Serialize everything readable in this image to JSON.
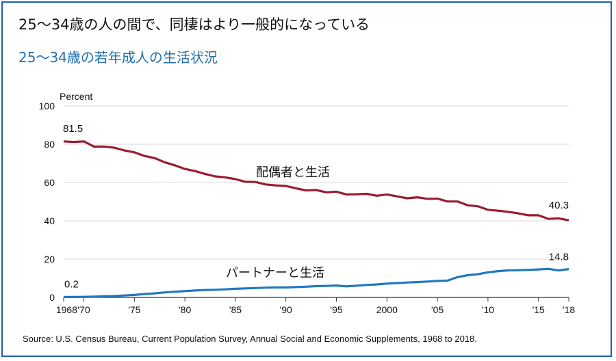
{
  "title": "25～34歳の人の間で、同棲はより一般的になっている",
  "subtitle": "25～34歳の若年成人の生活状況",
  "source": "Source: U.S. Census Bureau, Current Population Survey, Annual Social and Economic Supplements, 1968 to 2018.",
  "colors": {
    "spouse": "#9b1b30",
    "partner": "#1f78c1",
    "frame": "#1f5fa8",
    "subtitle": "#1f6fb0",
    "grid": "#cccccc"
  },
  "chart_data": {
    "type": "line",
    "ylabel": "Percent",
    "ylim": [
      0,
      100
    ],
    "yticks": [
      "0",
      "20",
      "40",
      "60",
      "80",
      "100"
    ],
    "xlim": [
      1968,
      2018
    ],
    "xticks": [
      {
        "x": 1968,
        "label": "1968"
      },
      {
        "x": 1970,
        "label": "'70"
      },
      {
        "x": 1975,
        "label": "'75"
      },
      {
        "x": 1980,
        "label": "'80"
      },
      {
        "x": 1985,
        "label": "'85"
      },
      {
        "x": 1990,
        "label": "'90"
      },
      {
        "x": 1995,
        "label": "'95"
      },
      {
        "x": 2000,
        "label": "2000"
      },
      {
        "x": 2005,
        "label": "'05"
      },
      {
        "x": 2010,
        "label": "'10"
      },
      {
        "x": 2015,
        "label": "'15"
      },
      {
        "x": 2018,
        "label": "'18"
      }
    ],
    "x": [
      1968,
      1969,
      1970,
      1971,
      1972,
      1973,
      1974,
      1975,
      1976,
      1977,
      1978,
      1979,
      1980,
      1981,
      1982,
      1983,
      1984,
      1985,
      1986,
      1987,
      1988,
      1989,
      1990,
      1991,
      1992,
      1993,
      1994,
      1995,
      1996,
      1997,
      1998,
      1999,
      2000,
      2001,
      2002,
      2003,
      2004,
      2005,
      2006,
      2007,
      2008,
      2009,
      2010,
      2011,
      2012,
      2013,
      2014,
      2015,
      2016,
      2017,
      2018
    ],
    "series": [
      {
        "name": "配偶者と生活",
        "values": [
          81.5,
          81.2,
          81.5,
          78.8,
          78.8,
          78.2,
          76.8,
          75.8,
          73.9,
          72.8,
          70.6,
          69.0,
          67.1,
          66.0,
          64.5,
          63.2,
          62.7,
          61.8,
          60.4,
          60.3,
          59.0,
          58.5,
          58.2,
          57.0,
          55.9,
          56.1,
          54.9,
          55.2,
          53.8,
          53.9,
          54.1,
          53.1,
          53.8,
          52.8,
          51.8,
          52.3,
          51.5,
          51.6,
          50.1,
          50.1,
          48.1,
          47.6,
          45.8,
          45.3,
          44.7,
          43.9,
          42.9,
          42.9,
          41.0,
          41.3,
          40.3
        ],
        "end_labels": {
          "first": "81.5",
          "last": "40.3"
        }
      },
      {
        "name": "パートナーと生活",
        "values": [
          0.2,
          0.2,
          0.3,
          0.4,
          0.6,
          0.7,
          1.0,
          1.3,
          1.8,
          2.1,
          2.6,
          3.0,
          3.3,
          3.6,
          3.9,
          4.0,
          4.2,
          4.5,
          4.7,
          4.9,
          5.1,
          5.2,
          5.2,
          5.4,
          5.6,
          5.9,
          6.0,
          6.2,
          5.8,
          6.1,
          6.5,
          6.8,
          7.2,
          7.5,
          7.8,
          8.0,
          8.3,
          8.6,
          8.8,
          10.6,
          11.6,
          12.1,
          13.1,
          13.7,
          14.1,
          14.2,
          14.4,
          14.6,
          14.9,
          14.1,
          14.8
        ],
        "end_labels": {
          "first": "0.2",
          "last": "14.8"
        }
      }
    ],
    "grid": true
  }
}
